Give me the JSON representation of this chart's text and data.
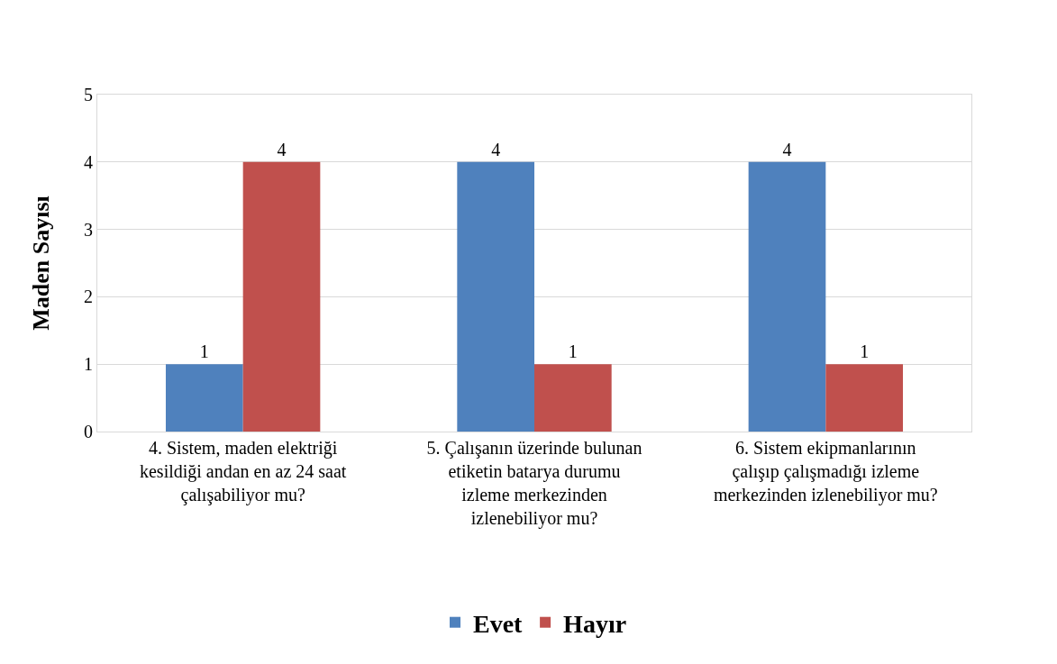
{
  "chart_data": {
    "type": "bar",
    "ylabel": "Maden Sayısı",
    "categories": [
      "4. Sistem, maden elektriği kesildiği andan en az 24 saat çalışabiliyor mu?",
      "5. Çalışanın üzerinde bulunan etiketin batarya durumu izleme merkezinden izlenebiliyor mu?",
      "6. Sistem ekipmanlarının çalışıp çalışmadığı izleme merkezinden izlenebiliyor mu?"
    ],
    "series": [
      {
        "name": "Evet",
        "color": "#4f81bd",
        "values": [
          1,
          4,
          4
        ]
      },
      {
        "name": "Hayır",
        "color": "#c0504d",
        "values": [
          4,
          1,
          1
        ]
      }
    ],
    "ylim": [
      0,
      5
    ],
    "yticks": [
      0,
      1,
      2,
      3,
      4,
      5
    ],
    "grid": "y",
    "legend": "bottom",
    "data_labels": true
  }
}
